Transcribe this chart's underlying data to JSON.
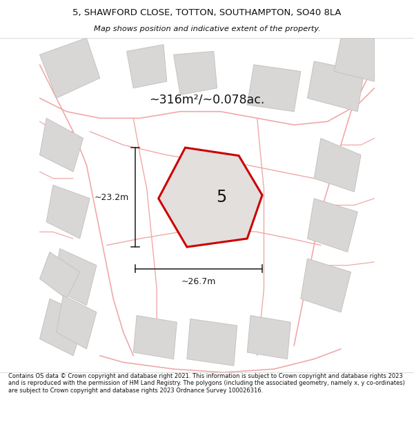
{
  "title_line1": "5, SHAWFORD CLOSE, TOTTON, SOUTHAMPTON, SO40 8LA",
  "title_line2": "Map shows position and indicative extent of the property.",
  "area_text": "~316m²/~0.078ac.",
  "label_width": "~26.7m",
  "label_height": "~23.2m",
  "plot_number": "5",
  "footer_text": "Contains OS data © Crown copyright and database right 2021. This information is subject to Crown copyright and database rights 2023 and is reproduced with the permission of HM Land Registry. The polygons (including the associated geometry, namely x, y co-ordinates) are subject to Crown copyright and database rights 2023 Ordnance Survey 100026316.",
  "bg_color": "#edecea",
  "building_fill": "#d9d7d5",
  "building_edge": "#c5c2c0",
  "road_color": "#f0a8a8",
  "plot_fill": "#e2dfdd",
  "plot_edge": "#cc0000",
  "dim_color": "#1a1a1a",
  "title_color": "#111111",
  "footer_color": "#111111",
  "title_sep_color": "#000000",
  "footer_sep_color": "#000000"
}
